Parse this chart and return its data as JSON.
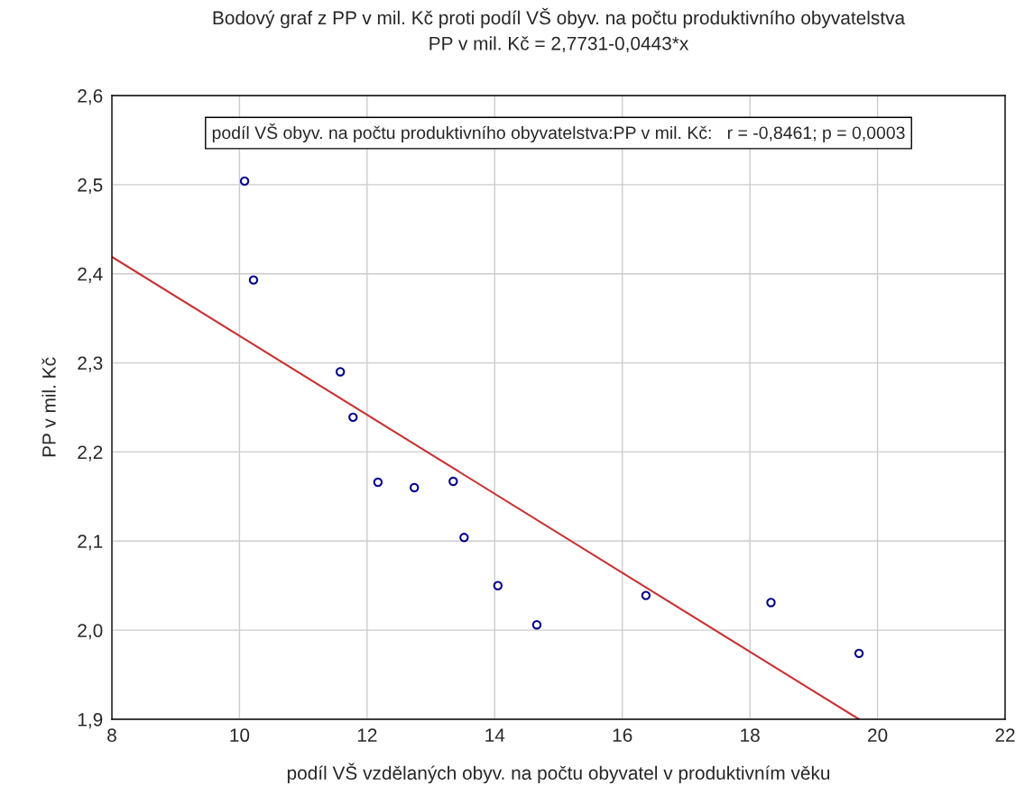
{
  "chart_data": {
    "type": "scatter",
    "title": "Bodový graf z PP v mil. Kč proti podíl VŠ obyv. na počtu produktivního obyvatelstva",
    "subtitle": "PP v mil. Kč = 2,7731-0,0443*x",
    "xlabel": "podíl VŠ vzdělaných obyv. na počtu obyvatel v produktivním věku",
    "ylabel": "PP v mil. Kč",
    "annotations": [
      "podíl VŠ obyv. na počtu produktivního obyvatelstva:PP v mil. Kč:   r = -0,8461; p = 0,0003"
    ],
    "xlim": [
      8,
      22
    ],
    "xticks": [
      8,
      10,
      12,
      14,
      16,
      18,
      20,
      22
    ],
    "ylim": [
      1.9,
      2.6
    ],
    "yticks": [
      {
        "value": 1.9,
        "label": "1,9"
      },
      {
        "value": 2.0,
        "label": "2,0"
      },
      {
        "value": 2.1,
        "label": "2,1"
      },
      {
        "value": 2.2,
        "label": "2,2"
      },
      {
        "value": 2.3,
        "label": "2,3"
      },
      {
        "value": 2.4,
        "label": "2,4"
      },
      {
        "value": 2.5,
        "label": "2,5"
      },
      {
        "value": 2.6,
        "label": "2,6"
      }
    ],
    "grid": true,
    "series": [
      {
        "marker": "circle",
        "color": "#00008b",
        "x": [
          10.08,
          10.22,
          11.58,
          11.78,
          12.17,
          12.74,
          13.35,
          13.52,
          14.05,
          14.66,
          16.37,
          18.33,
          19.71
        ],
        "values": [
          2.504,
          2.393,
          2.29,
          2.239,
          2.166,
          2.16,
          2.167,
          2.104,
          2.05,
          2.006,
          2.039,
          2.031,
          1.974
        ]
      },
      {
        "type": "line",
        "color": "#c83232",
        "line_style": "solid",
        "x": [
          8,
          19.71
        ],
        "values": [
          2.419,
          1.9
        ]
      }
    ]
  }
}
